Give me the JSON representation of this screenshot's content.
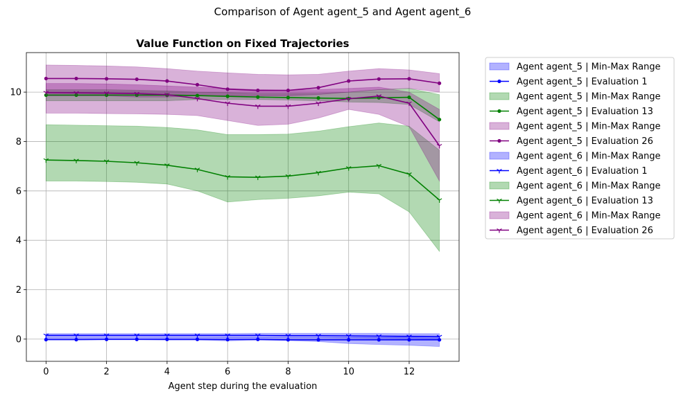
{
  "suptitle": "Comparison of Agent agent_5 and Agent agent_6",
  "chart_data": {
    "type": "line",
    "title": "Value Function on Fixed Trajectories",
    "xlabel": "Agent step during the evaluation",
    "ylabel": "",
    "xlim": [
      -0.65,
      13.65
    ],
    "ylim": [
      -0.9,
      11.6
    ],
    "xticks": [
      0,
      2,
      4,
      6,
      8,
      10,
      12
    ],
    "yticks": [
      0,
      2,
      4,
      6,
      8,
      10
    ],
    "grid": true,
    "legend_position": "outside-right",
    "x": [
      0,
      1,
      2,
      3,
      4,
      5,
      6,
      7,
      8,
      9,
      10,
      11,
      12,
      13
    ],
    "series": [
      {
        "name": "Agent agent_5 | Min-Max Range",
        "kind": "band",
        "color": "#0000ff",
        "lower": [
          -0.03,
          -0.03,
          -0.03,
          -0.03,
          -0.04,
          -0.04,
          -0.07,
          -0.04,
          -0.06,
          -0.1,
          -0.18,
          -0.22,
          -0.25,
          -0.3
        ],
        "upper": [
          0.04,
          0.04,
          0.04,
          0.04,
          0.05,
          0.05,
          0.06,
          0.06,
          0.06,
          0.06,
          0.07,
          0.07,
          0.08,
          0.1
        ]
      },
      {
        "name": "Agent agent_5 | Evaluation 1",
        "kind": "line",
        "marker": "dot",
        "color": "#0000ff",
        "values": [
          -0.02,
          -0.02,
          -0.01,
          -0.01,
          -0.01,
          -0.01,
          -0.02,
          -0.01,
          -0.03,
          -0.03,
          -0.03,
          -0.03,
          -0.03,
          -0.03
        ]
      },
      {
        "name": "Agent agent_5 | Min-Max Range",
        "kind": "band",
        "color": "#008000",
        "lower": [
          9.65,
          9.65,
          9.65,
          9.65,
          9.65,
          9.7,
          9.7,
          9.7,
          9.68,
          9.65,
          9.6,
          9.58,
          9.5,
          8.8
        ],
        "upper": [
          10.1,
          10.1,
          10.1,
          10.08,
          10.05,
          10.0,
          9.98,
          9.95,
          9.95,
          9.95,
          10.0,
          10.1,
          10.15,
          9.9
        ]
      },
      {
        "name": "Agent agent_5 | Evaluation 13",
        "kind": "line",
        "marker": "dot",
        "color": "#008000",
        "values": [
          9.88,
          9.88,
          9.88,
          9.88,
          9.88,
          9.86,
          9.83,
          9.8,
          9.78,
          9.76,
          9.74,
          9.77,
          9.79,
          8.89
        ]
      },
      {
        "name": "Agent agent_5 | Min-Max Range",
        "kind": "band",
        "color": "#800080",
        "lower": [
          9.85,
          9.85,
          9.85,
          9.8,
          9.8,
          9.85,
          9.85,
          9.85,
          9.85,
          9.9,
          10.0,
          10.1,
          10.15,
          10.0
        ],
        "upper": [
          11.1,
          11.08,
          11.06,
          11.02,
          10.95,
          10.85,
          10.78,
          10.72,
          10.7,
          10.72,
          10.85,
          10.95,
          10.9,
          10.75
        ]
      },
      {
        "name": "Agent agent_5 | Evaluation 26",
        "kind": "line",
        "marker": "dot",
        "color": "#800080",
        "values": [
          10.55,
          10.55,
          10.54,
          10.52,
          10.45,
          10.3,
          10.12,
          10.07,
          10.07,
          10.18,
          10.45,
          10.53,
          10.54,
          10.36
        ]
      },
      {
        "name": "Agent agent_6 | Min-Max Range",
        "kind": "band",
        "color": "#0000ff",
        "lower": [
          0.06,
          0.06,
          0.06,
          0.06,
          0.06,
          0.06,
          0.06,
          0.06,
          0.05,
          0.05,
          0.04,
          0.03,
          0.02,
          0.0
        ],
        "upper": [
          0.22,
          0.22,
          0.22,
          0.22,
          0.22,
          0.22,
          0.22,
          0.23,
          0.23,
          0.23,
          0.23,
          0.23,
          0.22,
          0.22
        ]
      },
      {
        "name": "Agent agent_6 | Evaluation 1",
        "kind": "line",
        "marker": "tri",
        "color": "#0000ff",
        "values": [
          0.15,
          0.15,
          0.15,
          0.15,
          0.15,
          0.15,
          0.15,
          0.15,
          0.14,
          0.14,
          0.13,
          0.12,
          0.11,
          0.1
        ]
      },
      {
        "name": "Agent agent_6 | Min-Max Range",
        "kind": "band",
        "color": "#008000",
        "lower": [
          6.4,
          6.4,
          6.38,
          6.35,
          6.28,
          6.0,
          5.55,
          5.65,
          5.7,
          5.8,
          5.95,
          5.88,
          5.15,
          3.55
        ],
        "upper": [
          8.68,
          8.66,
          8.64,
          8.62,
          8.57,
          8.47,
          8.28,
          8.28,
          8.3,
          8.42,
          8.6,
          8.75,
          8.62,
          7.65
        ]
      },
      {
        "name": "Agent agent_6 | Evaluation 13",
        "kind": "line",
        "marker": "tri",
        "color": "#008000",
        "values": [
          7.25,
          7.23,
          7.2,
          7.14,
          7.04,
          6.87,
          6.57,
          6.55,
          6.6,
          6.74,
          6.93,
          7.02,
          6.68,
          5.63
        ]
      },
      {
        "name": "Agent agent_6 | Min-Max Range",
        "kind": "band",
        "color": "#800080",
        "lower": [
          9.15,
          9.15,
          9.13,
          9.12,
          9.1,
          9.05,
          8.85,
          8.65,
          8.7,
          8.95,
          9.3,
          9.1,
          8.6,
          6.4
        ],
        "upper": [
          10.35,
          10.35,
          10.33,
          10.3,
          10.25,
          10.2,
          10.15,
          10.1,
          10.08,
          10.1,
          10.15,
          10.2,
          10.0,
          9.3
        ]
      },
      {
        "name": "Agent agent_6 | Evaluation 26",
        "kind": "line",
        "marker": "tri",
        "color": "#800080",
        "values": [
          9.98,
          9.97,
          9.96,
          9.94,
          9.9,
          9.74,
          9.55,
          9.43,
          9.43,
          9.55,
          9.73,
          9.84,
          9.55,
          7.83
        ]
      }
    ]
  }
}
